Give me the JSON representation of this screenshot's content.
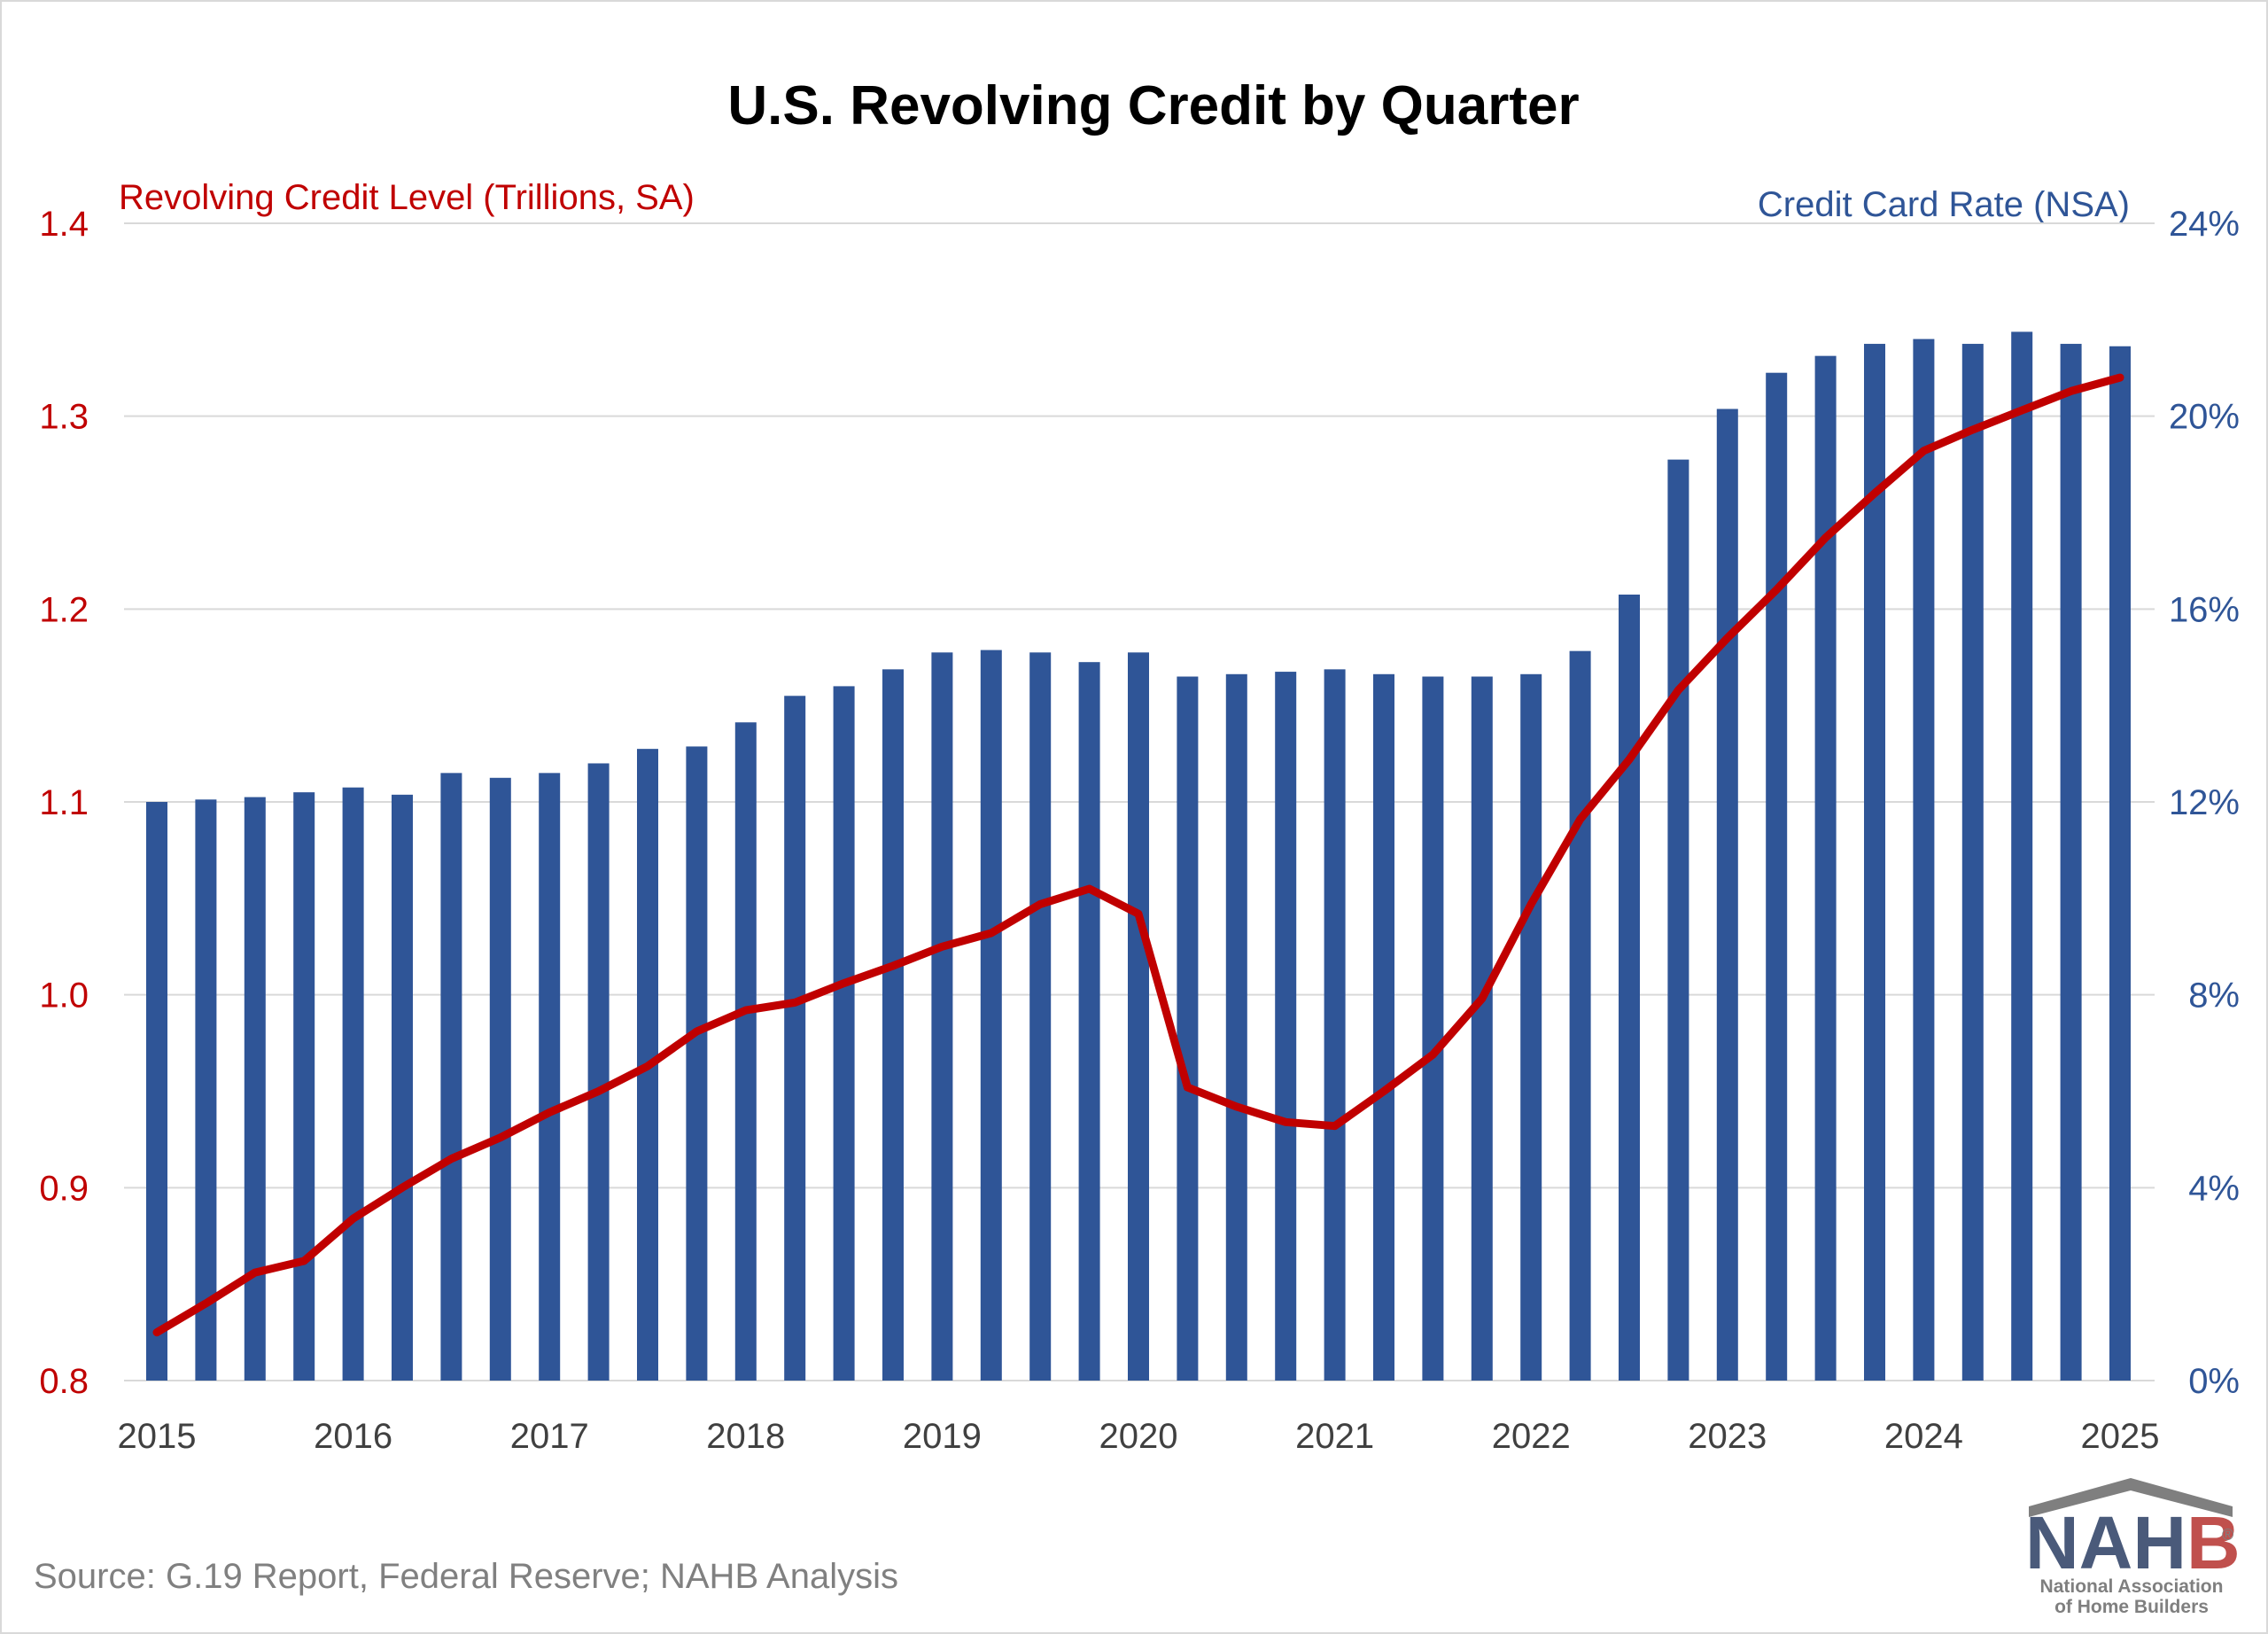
{
  "chart_data": {
    "type": "bar",
    "title": "U.S. Revolving Credit by Quarter",
    "left_axis_label": "Revolving Credit Level (Trillions, SA)",
    "right_axis_label": "Credit Card Rate (NSA)",
    "left_ylim": [
      0.8,
      1.4
    ],
    "left_ticks": [
      "0.8",
      "0.9",
      "1.0",
      "1.1",
      "1.2",
      "1.3",
      "1.4"
    ],
    "right_ylim": [
      0,
      24
    ],
    "right_ticks": [
      "0%",
      "4%",
      "8%",
      "12%",
      "16%",
      "20%",
      "24%"
    ],
    "x_tick_labels": [
      "2015",
      "2016",
      "2017",
      "2018",
      "2019",
      "2020",
      "2021",
      "2022",
      "2023",
      "2024",
      "2025"
    ],
    "grid": true,
    "categories": [
      "2015Q1",
      "2015Q2",
      "2015Q3",
      "2015Q4",
      "2016Q1",
      "2016Q2",
      "2016Q3",
      "2016Q4",
      "2017Q1",
      "2017Q2",
      "2017Q3",
      "2017Q4",
      "2018Q1",
      "2018Q2",
      "2018Q3",
      "2018Q4",
      "2019Q1",
      "2019Q2",
      "2019Q3",
      "2019Q4",
      "2020Q1",
      "2020Q2",
      "2020Q3",
      "2020Q4",
      "2021Q1",
      "2021Q2",
      "2021Q3",
      "2021Q4",
      "2022Q1",
      "2022Q2",
      "2022Q3",
      "2022Q4",
      "2023Q1",
      "2023Q2",
      "2023Q3",
      "2023Q4",
      "2024Q1",
      "2024Q2",
      "2024Q3",
      "2024Q4",
      "2025Q1"
    ],
    "series": [
      {
        "name": "Credit Card Rate (NSA)",
        "type": "bar",
        "axis": "right",
        "color": "#2f5597",
        "values": [
          12.0,
          12.05,
          12.1,
          12.2,
          12.3,
          12.15,
          12.6,
          12.5,
          12.6,
          12.8,
          13.1,
          13.15,
          13.65,
          14.2,
          14.4,
          14.75,
          15.1,
          15.15,
          15.1,
          14.9,
          15.1,
          14.6,
          14.65,
          14.7,
          14.75,
          14.65,
          14.6,
          14.6,
          14.65,
          15.13,
          16.3,
          19.1,
          20.15,
          20.9,
          21.25,
          21.5,
          21.6,
          21.5,
          21.75,
          21.5,
          21.45
        ]
      },
      {
        "name": "Revolving Credit Level (Trillions, SA)",
        "type": "line",
        "axis": "left",
        "color": "#c00000",
        "values": [
          0.825,
          0.84,
          0.856,
          0.862,
          0.884,
          0.9,
          0.915,
          0.926,
          0.939,
          0.95,
          0.963,
          0.981,
          0.992,
          0.996,
          1.006,
          1.015,
          1.025,
          1.032,
          1.047,
          1.055,
          1.042,
          0.952,
          0.942,
          0.934,
          0.932,
          0.95,
          0.969,
          0.998,
          1.047,
          1.091,
          1.122,
          1.158,
          1.185,
          1.21,
          1.237,
          1.26,
          1.282,
          1.293,
          1.303,
          1.313,
          1.32
        ]
      }
    ],
    "source": "Source: G.19 Report, Federal Reserve; NAHB Analysis"
  },
  "logo": {
    "word_n": "N",
    "word_a": "A",
    "word_h": "H",
    "word_b": "B",
    "registered": "®",
    "line1": "National Association",
    "line2": "of Home Builders",
    "color_dark": "#4a5a7a",
    "color_red": "#c0504d"
  }
}
